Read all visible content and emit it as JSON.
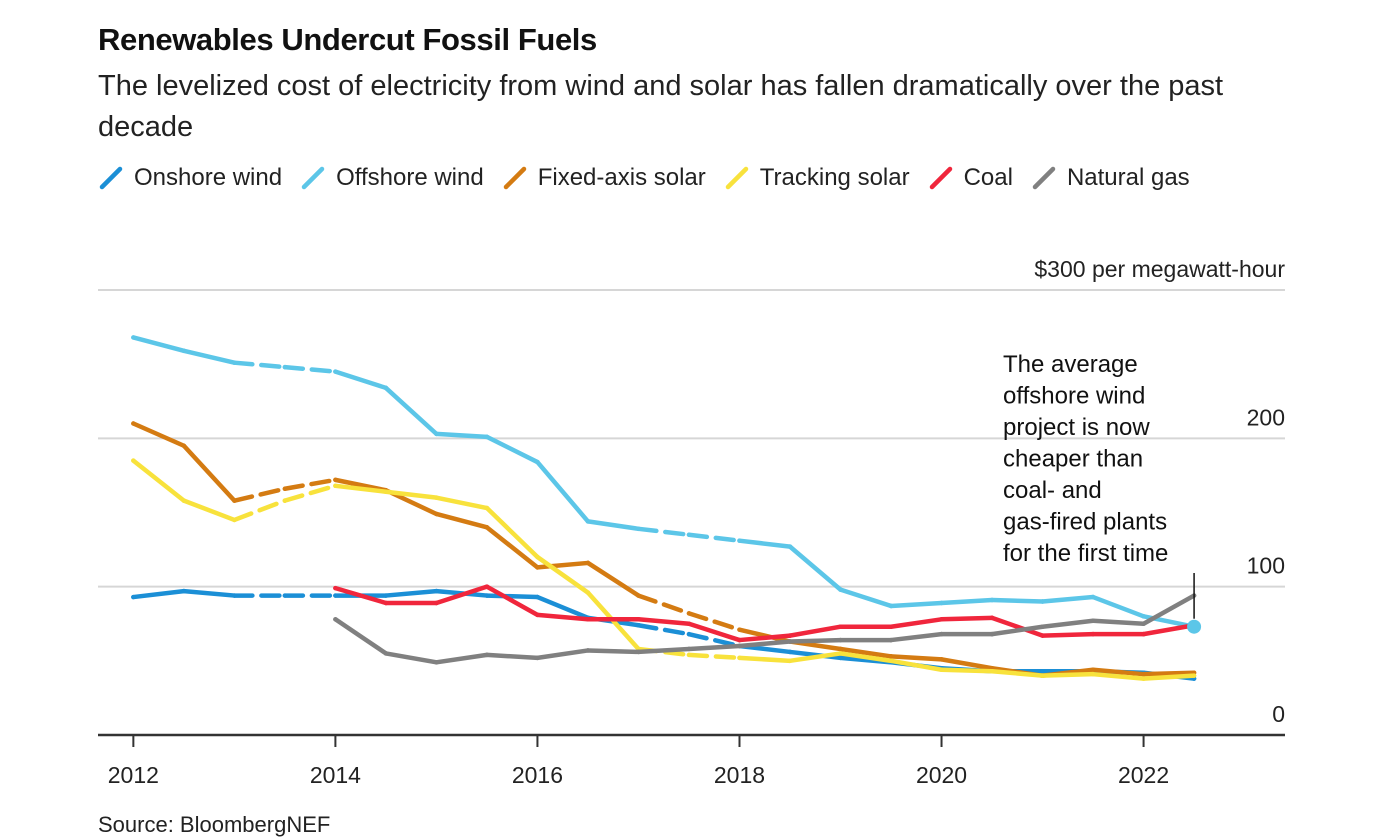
{
  "title": "Renewables Undercut Fossil Fuels",
  "subtitle": "The levelized cost of electricity from wind and solar has fallen dramatically over the past decade",
  "source": "Source: BloombergNEF",
  "chart_data": {
    "type": "line",
    "ylabel": "$300 per megawatt-hour",
    "ylim": [
      0,
      300
    ],
    "xlim": [
      2011.65,
      2023.4
    ],
    "y_ticks": [
      {
        "value": 0,
        "label": "0"
      },
      {
        "value": 100,
        "label": "100"
      },
      {
        "value": 200,
        "label": "200"
      },
      {
        "value": 300,
        "label": "$300 per megawatt-hour"
      }
    ],
    "x_ticks": [
      {
        "value": 2012,
        "label": "2012"
      },
      {
        "value": 2014,
        "label": "2014"
      },
      {
        "value": 2016,
        "label": "2016"
      },
      {
        "value": 2018,
        "label": "2018"
      },
      {
        "value": 2020,
        "label": "2020"
      },
      {
        "value": 2022,
        "label": "2022"
      }
    ],
    "grid": true,
    "legend_position": "top",
    "series": [
      {
        "name": "Onshore wind",
        "color": "#1b8fd6",
        "points": [
          {
            "x": 2012.0,
            "y": 93
          },
          {
            "x": 2012.5,
            "y": 97
          },
          {
            "x": 2013.0,
            "y": 94
          },
          {
            "x": 2013.5,
            "y": 94,
            "dashed": true
          },
          {
            "x": 2014.0,
            "y": 94,
            "dashed": true
          },
          {
            "x": 2014.5,
            "y": 94
          },
          {
            "x": 2015.0,
            "y": 97
          },
          {
            "x": 2015.5,
            "y": 94
          },
          {
            "x": 2016.0,
            "y": 93
          },
          {
            "x": 2016.5,
            "y": 79
          },
          {
            "x": 2017.0,
            "y": 74
          },
          {
            "x": 2017.5,
            "y": 68,
            "dashed": true
          },
          {
            "x": 2018.0,
            "y": 60,
            "dashed": true
          },
          {
            "x": 2018.5,
            "y": 56
          },
          {
            "x": 2019.0,
            "y": 52
          },
          {
            "x": 2019.5,
            "y": 49
          },
          {
            "x": 2020.0,
            "y": 45
          },
          {
            "x": 2020.5,
            "y": 43
          },
          {
            "x": 2021.0,
            "y": 43
          },
          {
            "x": 2021.5,
            "y": 43
          },
          {
            "x": 2022.0,
            "y": 42
          },
          {
            "x": 2022.5,
            "y": 38
          }
        ]
      },
      {
        "name": "Offshore wind",
        "color": "#5cc6e8",
        "points": [
          {
            "x": 2012.0,
            "y": 268
          },
          {
            "x": 2012.5,
            "y": 259
          },
          {
            "x": 2013.0,
            "y": 251
          },
          {
            "x": 2013.5,
            "y": 248,
            "dashed": true
          },
          {
            "x": 2014.0,
            "y": 245,
            "dashed": true
          },
          {
            "x": 2014.5,
            "y": 234
          },
          {
            "x": 2015.0,
            "y": 203
          },
          {
            "x": 2015.5,
            "y": 201
          },
          {
            "x": 2016.0,
            "y": 184
          },
          {
            "x": 2016.5,
            "y": 144
          },
          {
            "x": 2017.0,
            "y": 139
          },
          {
            "x": 2017.5,
            "y": 135,
            "dashed": true
          },
          {
            "x": 2018.0,
            "y": 131,
            "dashed": true
          },
          {
            "x": 2018.5,
            "y": 127
          },
          {
            "x": 2019.0,
            "y": 98
          },
          {
            "x": 2019.5,
            "y": 87
          },
          {
            "x": 2020.0,
            "y": 89
          },
          {
            "x": 2020.5,
            "y": 91
          },
          {
            "x": 2021.0,
            "y": 90
          },
          {
            "x": 2021.5,
            "y": 93
          },
          {
            "x": 2022.0,
            "y": 80
          },
          {
            "x": 2022.5,
            "y": 73
          }
        ]
      },
      {
        "name": "Fixed-axis solar",
        "color": "#d47b12",
        "points": [
          {
            "x": 2012.0,
            "y": 210
          },
          {
            "x": 2012.5,
            "y": 195
          },
          {
            "x": 2013.0,
            "y": 158
          },
          {
            "x": 2013.5,
            "y": 166,
            "dashed": true
          },
          {
            "x": 2014.0,
            "y": 172,
            "dashed": true
          },
          {
            "x": 2014.5,
            "y": 165
          },
          {
            "x": 2015.0,
            "y": 149
          },
          {
            "x": 2015.5,
            "y": 140
          },
          {
            "x": 2016.0,
            "y": 113
          },
          {
            "x": 2016.5,
            "y": 116
          },
          {
            "x": 2017.0,
            "y": 94
          },
          {
            "x": 2017.5,
            "y": 82,
            "dashed": true
          },
          {
            "x": 2018.0,
            "y": 71,
            "dashed": true
          },
          {
            "x": 2018.5,
            "y": 63
          },
          {
            "x": 2019.0,
            "y": 58
          },
          {
            "x": 2019.5,
            "y": 53
          },
          {
            "x": 2020.0,
            "y": 51
          },
          {
            "x": 2020.5,
            "y": 45
          },
          {
            "x": 2021.0,
            "y": 40
          },
          {
            "x": 2021.5,
            "y": 44
          },
          {
            "x": 2022.0,
            "y": 41
          },
          {
            "x": 2022.5,
            "y": 42
          }
        ]
      },
      {
        "name": "Tracking solar",
        "color": "#f8e23c",
        "points": [
          {
            "x": 2012.0,
            "y": 185
          },
          {
            "x": 2012.5,
            "y": 158
          },
          {
            "x": 2013.0,
            "y": 145
          },
          {
            "x": 2013.5,
            "y": 158,
            "dashed": true
          },
          {
            "x": 2014.0,
            "y": 168,
            "dashed": true
          },
          {
            "x": 2014.5,
            "y": 164
          },
          {
            "x": 2015.0,
            "y": 160
          },
          {
            "x": 2015.5,
            "y": 153
          },
          {
            "x": 2016.0,
            "y": 120
          },
          {
            "x": 2016.5,
            "y": 96
          },
          {
            "x": 2017.0,
            "y": 58
          },
          {
            "x": 2017.5,
            "y": 54,
            "dashed": true
          },
          {
            "x": 2018.0,
            "y": 52,
            "dashed": true
          },
          {
            "x": 2018.5,
            "y": 50
          },
          {
            "x": 2019.0,
            "y": 55
          },
          {
            "x": 2019.5,
            "y": 50
          },
          {
            "x": 2020.0,
            "y": 44
          },
          {
            "x": 2020.5,
            "y": 43
          },
          {
            "x": 2021.0,
            "y": 40
          },
          {
            "x": 2021.5,
            "y": 41
          },
          {
            "x": 2022.0,
            "y": 38
          },
          {
            "x": 2022.5,
            "y": 40
          }
        ]
      },
      {
        "name": "Coal",
        "color": "#f0263c",
        "points": [
          {
            "x": 2014.0,
            "y": 99
          },
          {
            "x": 2014.5,
            "y": 89
          },
          {
            "x": 2015.0,
            "y": 89
          },
          {
            "x": 2015.5,
            "y": 100
          },
          {
            "x": 2016.0,
            "y": 81
          },
          {
            "x": 2016.5,
            "y": 78
          },
          {
            "x": 2017.0,
            "y": 78
          },
          {
            "x": 2017.5,
            "y": 75
          },
          {
            "x": 2018.0,
            "y": 64
          },
          {
            "x": 2018.5,
            "y": 67
          },
          {
            "x": 2019.0,
            "y": 73
          },
          {
            "x": 2019.5,
            "y": 73
          },
          {
            "x": 2020.0,
            "y": 78
          },
          {
            "x": 2020.5,
            "y": 79
          },
          {
            "x": 2021.0,
            "y": 67
          },
          {
            "x": 2021.5,
            "y": 68
          },
          {
            "x": 2022.0,
            "y": 68
          },
          {
            "x": 2022.5,
            "y": 74
          }
        ]
      },
      {
        "name": "Natural gas",
        "color": "#808080",
        "points": [
          {
            "x": 2014.0,
            "y": 78
          },
          {
            "x": 2014.5,
            "y": 55
          },
          {
            "x": 2015.0,
            "y": 49
          },
          {
            "x": 2015.5,
            "y": 54
          },
          {
            "x": 2016.0,
            "y": 52
          },
          {
            "x": 2016.5,
            "y": 57
          },
          {
            "x": 2017.0,
            "y": 56
          },
          {
            "x": 2017.5,
            "y": 58
          },
          {
            "x": 2018.0,
            "y": 60
          },
          {
            "x": 2018.5,
            "y": 63
          },
          {
            "x": 2019.0,
            "y": 64
          },
          {
            "x": 2019.5,
            "y": 64
          },
          {
            "x": 2020.0,
            "y": 68
          },
          {
            "x": 2020.5,
            "y": 68
          },
          {
            "x": 2021.0,
            "y": 73
          },
          {
            "x": 2021.5,
            "y": 77
          },
          {
            "x": 2022.0,
            "y": 75
          },
          {
            "x": 2022.5,
            "y": 94
          }
        ]
      }
    ],
    "annotation": {
      "lines": [
        "The average",
        "offshore wind",
        "project is now",
        "cheaper than",
        "coal- and",
        "gas-fired plants",
        "for the first time"
      ],
      "target_series": "Offshore wind",
      "target_x": 2022.5,
      "target_y": 73
    }
  }
}
